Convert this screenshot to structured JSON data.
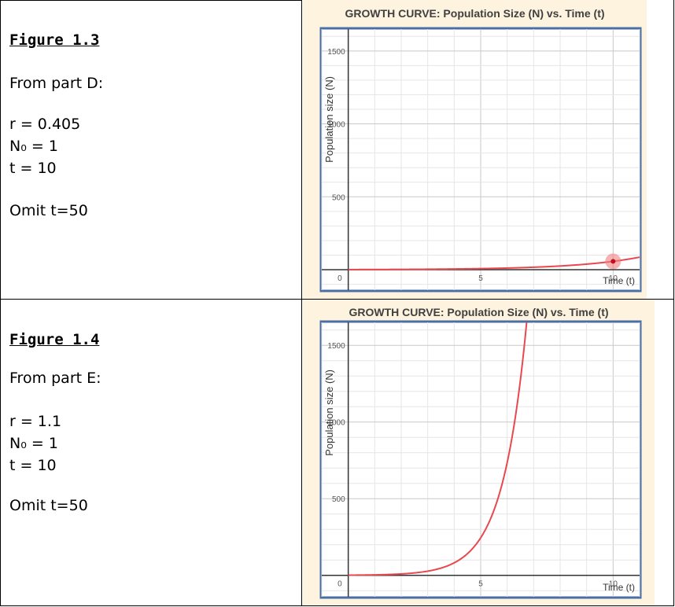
{
  "figures": [
    {
      "title": "Figure 1.3",
      "source": "From part D:",
      "params": [
        "r = 0.405",
        "N₀ = 1",
        "t = 10"
      ],
      "note": "Omit t=50"
    },
    {
      "title": "Figure 1.4",
      "source": "From part E:",
      "params": [
        "r = 1.1",
        "N₀ = 1",
        "t = 10"
      ],
      "note": "Omit t=50"
    }
  ],
  "chart_data": [
    {
      "type": "line",
      "title": "GROWTH CURVE: Population Size (N) vs. Time (t)",
      "xlabel": "Time (t)",
      "ylabel": "Population size (N)",
      "xlim": [
        -1,
        11
      ],
      "ylim": [
        -140,
        1650
      ],
      "x_ticks": [
        0,
        5,
        10
      ],
      "y_ticks": [
        500,
        1000,
        1500
      ],
      "zero_label": "0",
      "grid": true,
      "series": [
        {
          "formula": "exp",
          "r": 0.405,
          "N0": 1,
          "x_end": 11,
          "color": "#e8484f"
        }
      ],
      "highlight_point": {
        "x": 10,
        "y": 57.4
      }
    },
    {
      "type": "line",
      "title": "GROWTH CURVE: Population Size (N) vs. Time (t)",
      "xlabel": "Time (t)",
      "ylabel": "Population size (N)",
      "xlim": [
        -1,
        11
      ],
      "ylim": [
        -140,
        1650
      ],
      "x_ticks": [
        0,
        5,
        10
      ],
      "y_ticks": [
        500,
        1000,
        1500
      ],
      "zero_label": "0",
      "grid": true,
      "series": [
        {
          "formula": "exp",
          "r": 1.1,
          "N0": 1,
          "x_end": 11,
          "color": "#e8484f"
        }
      ]
    }
  ]
}
